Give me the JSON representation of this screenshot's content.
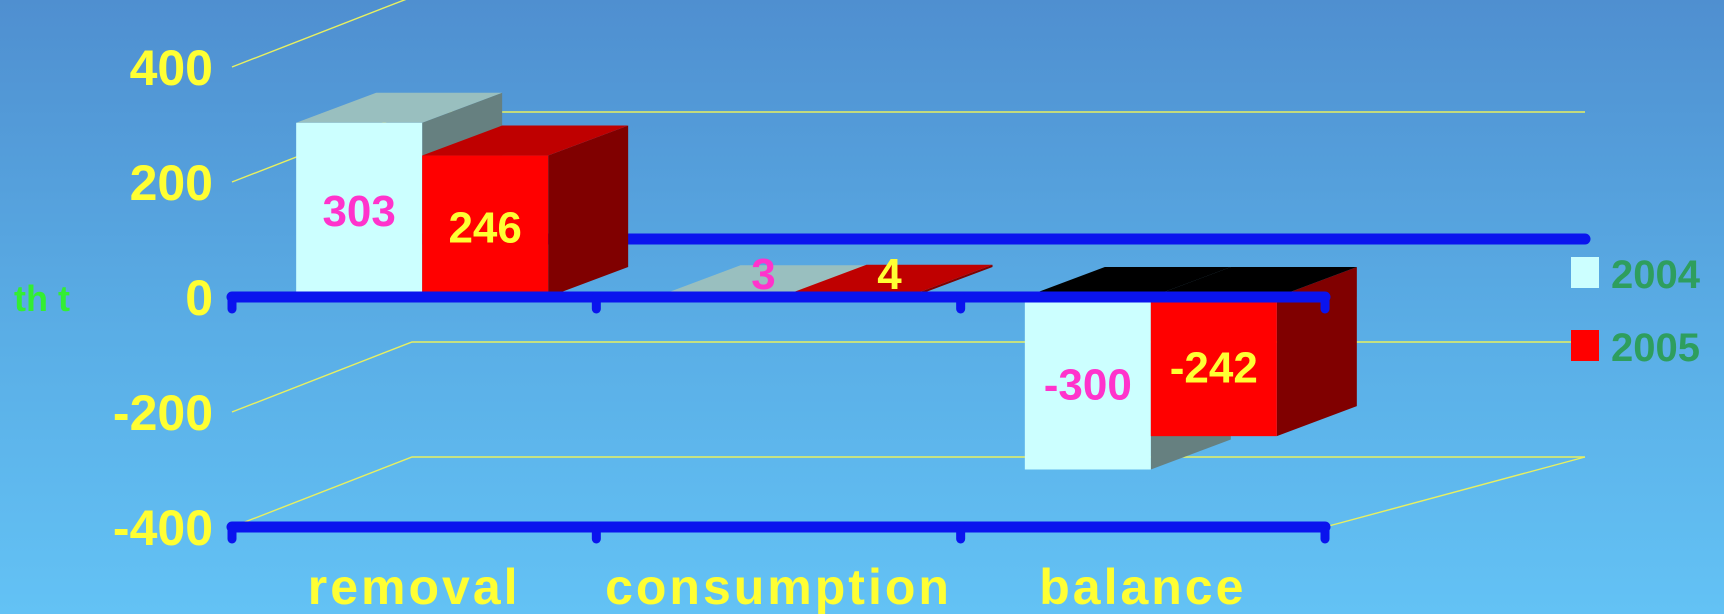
{
  "colors": {
    "text_yellow": "#ffff33",
    "value_magenta": "#ff33cc",
    "unit_green": "#33ee33",
    "legend_green": "#2e9e5e",
    "axis_blue": "#0a14ee",
    "grid_yellow": "#e8f060",
    "series_2004": "#ccffff",
    "series_2005": "#ff0000"
  },
  "chart_data": {
    "type": "bar",
    "style": "3d-clustered-column",
    "title": "",
    "xlabel": "",
    "ylabel": "th t",
    "ylim": [
      -400,
      400
    ],
    "yticks": [
      "400",
      "200",
      "0",
      "-200",
      "-400"
    ],
    "categories": [
      "removal",
      "consumption",
      "balance"
    ],
    "series": [
      {
        "name": "2004",
        "values": [
          303,
          3,
          -300
        ],
        "labels": [
          "303",
          "3",
          "-300"
        ]
      },
      {
        "name": "2005",
        "values": [
          246,
          4,
          -242
        ],
        "labels": [
          "246",
          "4",
          "-242"
        ]
      }
    ],
    "grid": true,
    "legend": "right"
  }
}
